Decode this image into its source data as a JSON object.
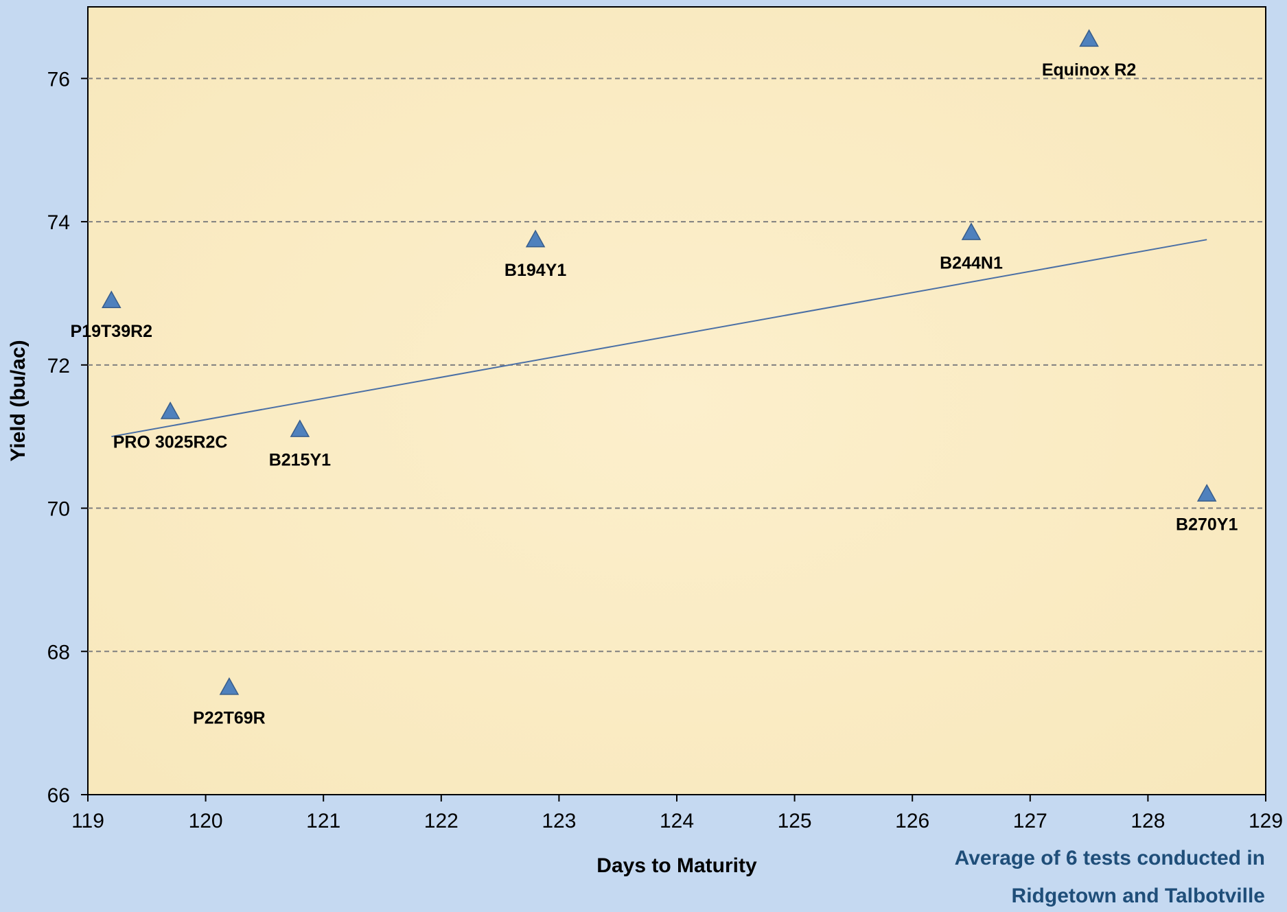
{
  "chart_data": {
    "type": "scatter",
    "title": "",
    "xlabel": "Days to Maturity",
    "ylabel": "Yield (bu/ac)",
    "xlim": [
      119,
      129
    ],
    "ylim": [
      66,
      77
    ],
    "x_ticks": [
      "119",
      "120",
      "121",
      "122",
      "123",
      "124",
      "125",
      "126",
      "127",
      "128",
      "129"
    ],
    "y_ticks": [
      "66",
      "68",
      "70",
      "72",
      "74",
      "76"
    ],
    "grid": "horizontal dashed",
    "marker": "triangle",
    "colors": {
      "marker_fill": "#4f81bd",
      "marker_edge": "#385d8a",
      "trendline": "#4a6fa5",
      "plot_bg": "#fbedc5",
      "page_bg": "#c5d9f1",
      "note": "#1f4e79"
    },
    "points": [
      {
        "label": "P19T39R2",
        "x": 119.2,
        "y": 72.9
      },
      {
        "label": "PRO 3025R2C",
        "x": 119.7,
        "y": 71.35
      },
      {
        "label": "P22T69R",
        "x": 120.2,
        "y": 67.5
      },
      {
        "label": "B215Y1",
        "x": 120.8,
        "y": 71.1
      },
      {
        "label": "B194Y1",
        "x": 122.8,
        "y": 73.75
      },
      {
        "label": "B244N1",
        "x": 126.5,
        "y": 73.85
      },
      {
        "label": "Equinox R2",
        "x": 127.5,
        "y": 76.55
      },
      {
        "label": "B270Y1",
        "x": 128.5,
        "y": 70.2
      }
    ],
    "trendline": {
      "type": "linear",
      "x": [
        119.2,
        128.5
      ],
      "y": [
        71.0,
        73.75
      ]
    },
    "annotation": [
      "Average of 6 tests conducted in",
      "Ridgetown and Talbotville"
    ]
  }
}
